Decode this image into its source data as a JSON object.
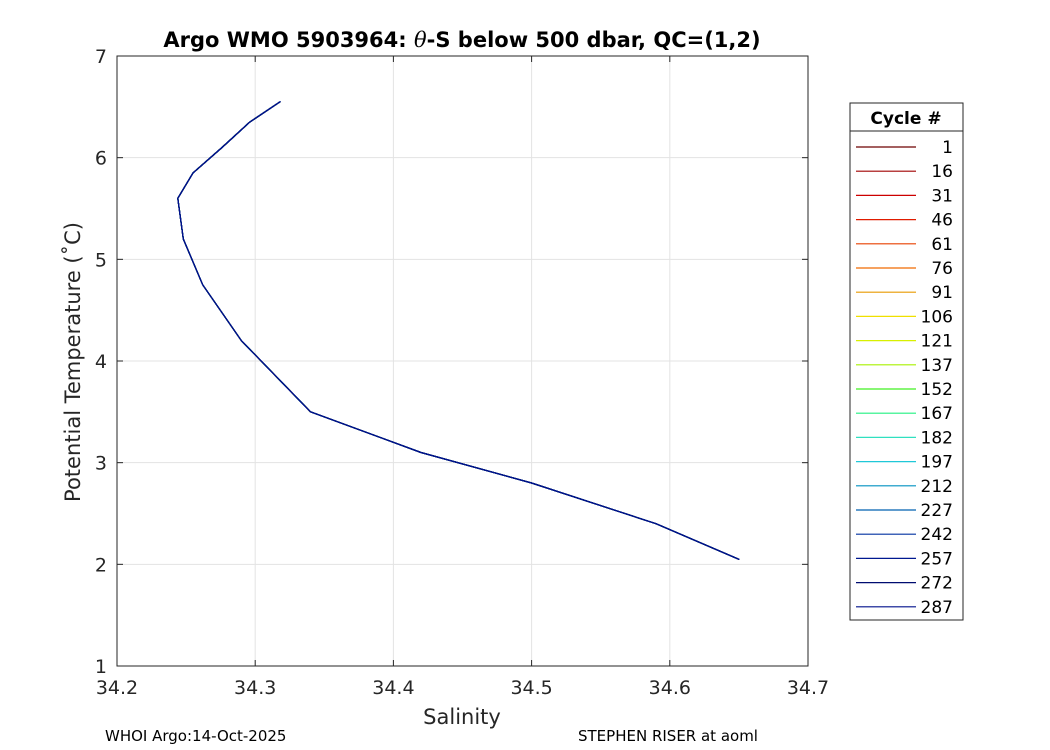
{
  "chart_data": {
    "type": "line",
    "title_parts": {
      "prefix": "Argo WMO 5903964: ",
      "theta": "θ",
      "suffix": "-S below 500 dbar,  QC=(1,2)"
    },
    "xlabel": "Salinity",
    "ylabel": "Potential Temperature (˚C)",
    "xlim": [
      34.2,
      34.7
    ],
    "ylim": [
      1,
      7
    ],
    "x_ticks": [
      34.2,
      34.3,
      34.4,
      34.5,
      34.6,
      34.7
    ],
    "y_ticks": [
      1,
      2,
      3,
      4,
      5,
      6,
      7
    ],
    "x_tick_labels": [
      "34.2",
      "34.3",
      "34.4",
      "34.5",
      "34.6",
      "34.7"
    ],
    "y_tick_labels": [
      "1",
      "2",
      "3",
      "4",
      "5",
      "6",
      "7"
    ],
    "grid": true,
    "legend": {
      "title": "Cycle #",
      "position": "right-outside",
      "entries": [
        "1",
        "16",
        "31",
        "46",
        "61",
        "76",
        "91",
        "106",
        "121",
        "137",
        "152",
        "167",
        "182",
        "197",
        "212",
        "227",
        "242",
        "257",
        "272",
        "287"
      ],
      "colors": [
        "#6e0000",
        "#a00000",
        "#cc0000",
        "#e01b00",
        "#e84000",
        "#f06a00",
        "#e89a00",
        "#f0e000",
        "#d8f000",
        "#a8f000",
        "#40f020",
        "#20f080",
        "#30e0c0",
        "#20c8d8",
        "#0090c0",
        "#0060b0",
        "#0030a0",
        "#001890",
        "#000c70",
        "#00108c"
      ]
    },
    "series": [
      {
        "name": "1",
        "x": [
          34.318,
          34.296,
          34.276,
          34.255,
          34.244,
          34.248,
          34.262,
          34.29,
          34.34,
          34.42,
          34.5,
          34.59,
          34.65
        ],
        "y": [
          6.55,
          6.35,
          6.1,
          5.85,
          5.6,
          5.2,
          4.75,
          4.2,
          3.5,
          3.1,
          2.8,
          2.4,
          2.05
        ]
      },
      {
        "name": "16",
        "x": [
          34.318,
          34.296,
          34.276,
          34.255,
          34.244,
          34.248,
          34.262,
          34.29,
          34.34,
          34.42,
          34.5,
          34.59,
          34.65
        ],
        "y": [
          6.55,
          6.35,
          6.1,
          5.85,
          5.6,
          5.2,
          4.75,
          4.2,
          3.5,
          3.1,
          2.8,
          2.4,
          2.05
        ]
      },
      {
        "name": "31",
        "x": [
          34.318,
          34.296,
          34.276,
          34.255,
          34.244,
          34.248,
          34.262,
          34.29,
          34.34,
          34.42,
          34.5,
          34.59,
          34.65
        ],
        "y": [
          6.55,
          6.35,
          6.1,
          5.85,
          5.6,
          5.2,
          4.75,
          4.2,
          3.5,
          3.1,
          2.8,
          2.4,
          2.05
        ]
      },
      {
        "name": "46",
        "x": [
          34.318,
          34.296,
          34.276,
          34.255,
          34.244,
          34.248,
          34.262,
          34.29,
          34.34,
          34.42,
          34.5,
          34.59,
          34.65
        ],
        "y": [
          6.55,
          6.35,
          6.1,
          5.85,
          5.6,
          5.2,
          4.75,
          4.2,
          3.5,
          3.1,
          2.8,
          2.4,
          2.05
        ]
      },
      {
        "name": "61",
        "x": [
          34.318,
          34.296,
          34.276,
          34.255,
          34.244,
          34.248,
          34.262,
          34.29,
          34.34,
          34.42,
          34.5,
          34.59,
          34.65
        ],
        "y": [
          6.55,
          6.35,
          6.1,
          5.85,
          5.6,
          5.2,
          4.75,
          4.2,
          3.5,
          3.1,
          2.8,
          2.4,
          2.05
        ]
      },
      {
        "name": "76",
        "x": [
          34.318,
          34.296,
          34.276,
          34.255,
          34.244,
          34.248,
          34.262,
          34.29,
          34.34,
          34.42,
          34.5,
          34.59,
          34.65
        ],
        "y": [
          6.55,
          6.35,
          6.1,
          5.85,
          5.6,
          5.2,
          4.75,
          4.2,
          3.5,
          3.1,
          2.8,
          2.4,
          2.05
        ]
      },
      {
        "name": "91",
        "x": [
          34.318,
          34.296,
          34.276,
          34.255,
          34.244,
          34.248,
          34.262,
          34.29,
          34.34,
          34.42,
          34.5,
          34.59,
          34.65
        ],
        "y": [
          6.55,
          6.35,
          6.1,
          5.85,
          5.6,
          5.2,
          4.75,
          4.2,
          3.5,
          3.1,
          2.8,
          2.4,
          2.05
        ]
      },
      {
        "name": "106",
        "x": [
          34.318,
          34.296,
          34.276,
          34.255,
          34.244,
          34.248,
          34.262,
          34.29,
          34.34,
          34.42,
          34.5,
          34.59,
          34.65
        ],
        "y": [
          6.55,
          6.35,
          6.1,
          5.85,
          5.6,
          5.2,
          4.75,
          4.2,
          3.5,
          3.1,
          2.8,
          2.4,
          2.05
        ]
      },
      {
        "name": "121",
        "x": [
          34.318,
          34.296,
          34.276,
          34.255,
          34.244,
          34.248,
          34.262,
          34.29,
          34.34,
          34.42,
          34.5,
          34.59,
          34.65
        ],
        "y": [
          6.55,
          6.35,
          6.1,
          5.85,
          5.6,
          5.2,
          4.75,
          4.2,
          3.5,
          3.1,
          2.8,
          2.4,
          2.05
        ]
      },
      {
        "name": "137",
        "x": [
          34.318,
          34.296,
          34.276,
          34.255,
          34.244,
          34.248,
          34.262,
          34.29,
          34.34,
          34.42,
          34.5,
          34.59,
          34.65
        ],
        "y": [
          6.55,
          6.35,
          6.1,
          5.85,
          5.6,
          5.2,
          4.75,
          4.2,
          3.5,
          3.1,
          2.8,
          2.4,
          2.05
        ]
      },
      {
        "name": "152",
        "x": [
          34.318,
          34.296,
          34.276,
          34.255,
          34.244,
          34.248,
          34.262,
          34.29,
          34.34,
          34.42,
          34.5,
          34.59,
          34.65
        ],
        "y": [
          6.55,
          6.35,
          6.1,
          5.85,
          5.6,
          5.2,
          4.75,
          4.2,
          3.5,
          3.1,
          2.8,
          2.4,
          2.05
        ]
      },
      {
        "name": "167",
        "x": [
          34.318,
          34.296,
          34.276,
          34.255,
          34.244,
          34.248,
          34.262,
          34.29,
          34.34,
          34.42,
          34.5,
          34.59,
          34.65
        ],
        "y": [
          6.55,
          6.35,
          6.1,
          5.85,
          5.6,
          5.2,
          4.75,
          4.2,
          3.5,
          3.1,
          2.8,
          2.4,
          2.05
        ]
      },
      {
        "name": "182",
        "x": [
          34.318,
          34.296,
          34.276,
          34.255,
          34.244,
          34.248,
          34.262,
          34.29,
          34.34,
          34.42,
          34.5,
          34.59,
          34.65
        ],
        "y": [
          6.55,
          6.35,
          6.1,
          5.85,
          5.6,
          5.2,
          4.75,
          4.2,
          3.5,
          3.1,
          2.8,
          2.4,
          2.05
        ]
      },
      {
        "name": "197",
        "x": [
          34.318,
          34.296,
          34.276,
          34.255,
          34.244,
          34.248,
          34.262,
          34.29,
          34.34,
          34.42,
          34.5,
          34.59,
          34.65
        ],
        "y": [
          6.55,
          6.35,
          6.1,
          5.85,
          5.6,
          5.2,
          4.75,
          4.2,
          3.5,
          3.1,
          2.8,
          2.4,
          2.05
        ]
      },
      {
        "name": "212",
        "x": [
          34.318,
          34.296,
          34.276,
          34.255,
          34.244,
          34.248,
          34.262,
          34.29,
          34.34,
          34.42,
          34.5,
          34.59,
          34.65
        ],
        "y": [
          6.55,
          6.35,
          6.1,
          5.85,
          5.6,
          5.2,
          4.75,
          4.2,
          3.5,
          3.1,
          2.8,
          2.4,
          2.05
        ]
      },
      {
        "name": "227",
        "x": [
          34.318,
          34.296,
          34.276,
          34.255,
          34.244,
          34.248,
          34.262,
          34.29,
          34.34,
          34.42,
          34.5,
          34.59,
          34.65
        ],
        "y": [
          6.55,
          6.35,
          6.1,
          5.85,
          5.6,
          5.2,
          4.75,
          4.2,
          3.5,
          3.1,
          2.8,
          2.4,
          2.05
        ]
      },
      {
        "name": "242",
        "x": [
          34.318,
          34.296,
          34.276,
          34.255,
          34.244,
          34.248,
          34.262,
          34.29,
          34.34,
          34.42,
          34.5,
          34.59,
          34.65
        ],
        "y": [
          6.55,
          6.35,
          6.1,
          5.85,
          5.6,
          5.2,
          4.75,
          4.2,
          3.5,
          3.1,
          2.8,
          2.4,
          2.05
        ]
      },
      {
        "name": "257",
        "x": [
          34.318,
          34.296,
          34.276,
          34.255,
          34.244,
          34.248,
          34.262,
          34.29,
          34.34,
          34.42,
          34.5,
          34.59,
          34.65
        ],
        "y": [
          6.55,
          6.35,
          6.1,
          5.85,
          5.6,
          5.2,
          4.75,
          4.2,
          3.5,
          3.1,
          2.8,
          2.4,
          2.05
        ]
      },
      {
        "name": "272",
        "x": [
          34.318,
          34.296,
          34.276,
          34.255,
          34.244,
          34.248,
          34.262,
          34.29,
          34.34,
          34.42,
          34.5,
          34.59,
          34.65
        ],
        "y": [
          6.55,
          6.35,
          6.1,
          5.85,
          5.6,
          5.2,
          4.75,
          4.2,
          3.5,
          3.1,
          2.8,
          2.4,
          2.05
        ]
      },
      {
        "name": "287",
        "x": [
          34.318,
          34.296,
          34.276,
          34.255,
          34.244,
          34.248,
          34.262,
          34.29,
          34.34,
          34.42,
          34.5,
          34.59,
          34.65
        ],
        "y": [
          6.55,
          6.35,
          6.1,
          5.85,
          5.6,
          5.2,
          4.75,
          4.2,
          3.5,
          3.1,
          2.8,
          2.4,
          2.05
        ]
      }
    ]
  },
  "footer": {
    "left": "WHOI Argo:14-Oct-2025",
    "right": "STEPHEN RISER at aoml"
  }
}
